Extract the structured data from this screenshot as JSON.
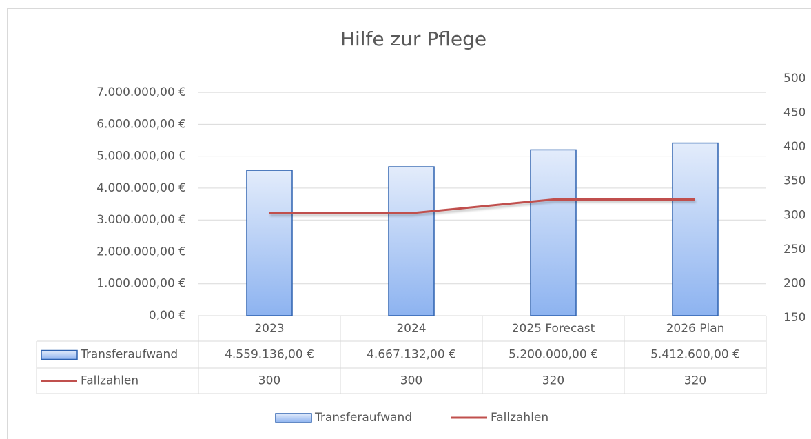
{
  "chart_data": {
    "type": "bar",
    "title": "Hilfe zur Pflege",
    "categories": [
      "2023",
      "2024",
      "2025 Forecast",
      "2026 Plan"
    ],
    "series": [
      {
        "name": "Transferaufwand",
        "type": "bar",
        "color": "#2e62b0",
        "values": [
          4559136,
          4667132,
          5200000,
          5412600
        ],
        "value_labels": [
          "4.559.136,00 €",
          "4.667.132,00 €",
          "5.200.000,00 €",
          "5.412.600,00 €"
        ]
      },
      {
        "name": "Fallzahlen",
        "type": "line",
        "axis": "y2",
        "color": "#c0504d",
        "values": [
          300,
          300,
          320,
          320
        ]
      }
    ],
    "ylim": [
      0,
      7500000
    ],
    "yticks": [
      {
        "value": 0,
        "label": "0,00 €"
      },
      {
        "value": 1000000,
        "label": "1.000.000,00 €"
      },
      {
        "value": 2000000,
        "label": "2.000.000,00 €"
      },
      {
        "value": 3000000,
        "label": "3.000.000,00 €"
      },
      {
        "value": 4000000,
        "label": "4.000.000,00 €"
      },
      {
        "value": 5000000,
        "label": "5.000.000,00 €"
      },
      {
        "value": 6000000,
        "label": "6.000.000,00 €"
      },
      {
        "value": 7000000,
        "label": "7.000.000,00 €"
      }
    ],
    "y2lim": [
      150,
      500
    ],
    "y2ticks": [
      150,
      200,
      250,
      300,
      350,
      400,
      450,
      500
    ],
    "grid": true,
    "legend": "bottom",
    "data_table": true
  }
}
